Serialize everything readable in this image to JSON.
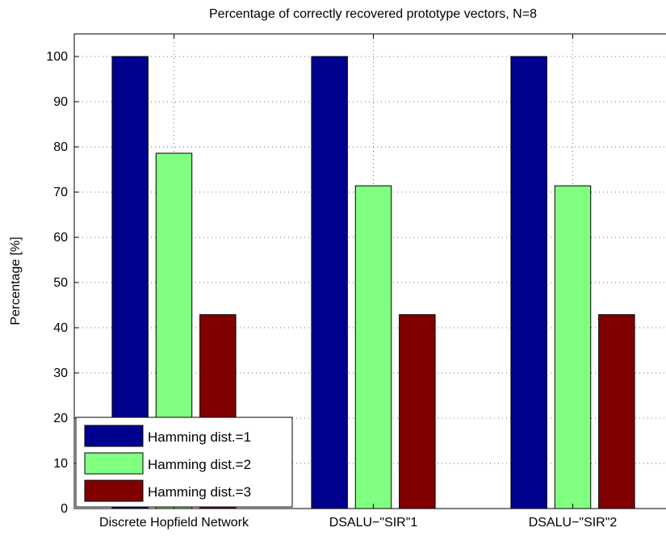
{
  "chart_data": {
    "type": "bar",
    "title": "Percentage of correctly recovered prototype vectors, N=8",
    "xlabel": "",
    "ylabel": "Percentage [%]",
    "categories": [
      "Discrete Hopfield Network",
      "DSALU−\"SIR\"1",
      "DSALU−\"SIR\"2"
    ],
    "series": [
      {
        "name": "Hamming dist.=1",
        "color": "#00008f",
        "values": [
          100,
          100,
          100
        ]
      },
      {
        "name": "Hamming dist.=2",
        "color": "#80ff80",
        "values": [
          78.6,
          71.4,
          71.4
        ]
      },
      {
        "name": "Hamming dist.=3",
        "color": "#800000",
        "values": [
          42.9,
          42.9,
          42.9
        ]
      }
    ],
    "ylim": [
      0,
      105
    ],
    "yticks": [
      0,
      10,
      20,
      30,
      40,
      50,
      60,
      70,
      80,
      90,
      100
    ],
    "grid": true,
    "legend_position": "bottom-left"
  }
}
